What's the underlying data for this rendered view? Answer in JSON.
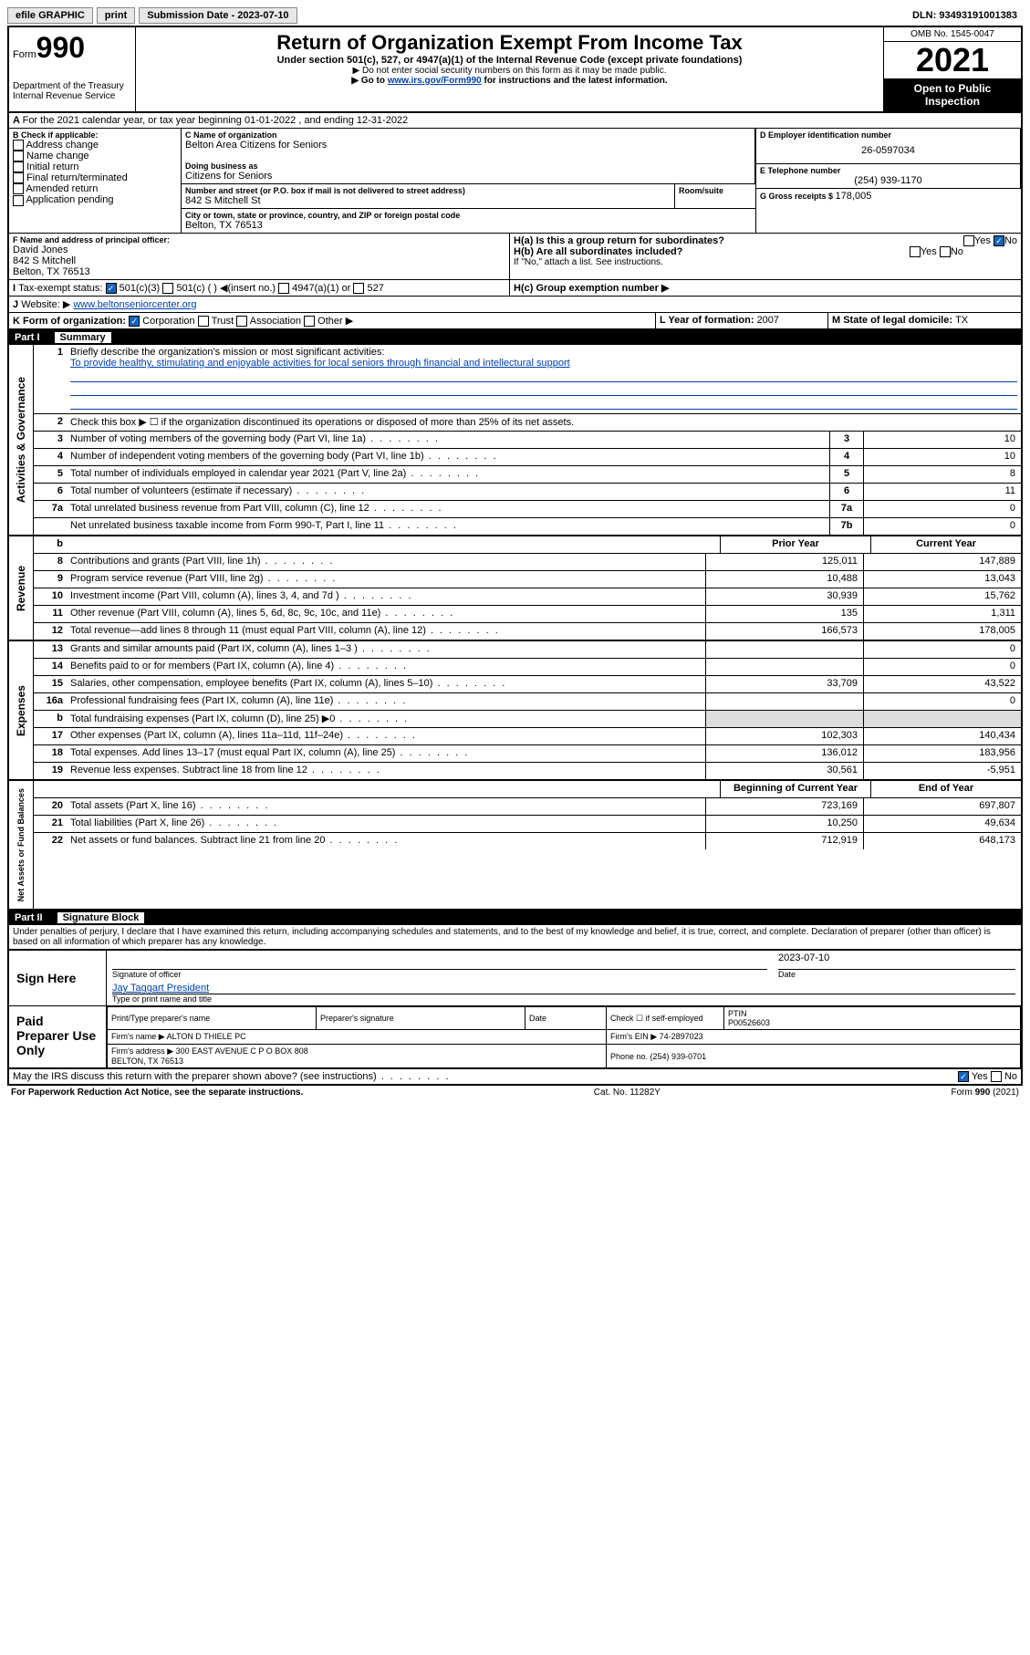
{
  "topbar": {
    "efile": "efile GRAPHIC",
    "print": "print",
    "submission_label": "Submission Date - ",
    "submission_date": "2023-07-10",
    "dln_label": "DLN: ",
    "dln": "93493191001383"
  },
  "header": {
    "form_prefix": "Form",
    "form_number": "990",
    "dept": "Department of the Treasury Internal Revenue Service",
    "title": "Return of Organization Exempt From Income Tax",
    "sub1": "Under section 501(c), 527, or 4947(a)(1) of the Internal Revenue Code (except private foundations)",
    "sub2": "▶ Do not enter social security numbers on this form as it may be made public.",
    "sub3_pre": "▶ Go to ",
    "sub3_link": "www.irs.gov/Form990",
    "sub3_post": " for instructions and the latest information.",
    "omb": "OMB No. 1545-0047",
    "year": "2021",
    "inspection": "Open to Public Inspection"
  },
  "period": {
    "line_a": "For the 2021 calendar year, or tax year beginning 01-01-2022  , and ending 12-31-2022"
  },
  "boxB": {
    "label": "Check if applicable:",
    "items": [
      "Address change",
      "Name change",
      "Initial return",
      "Final return/terminated",
      "Amended return",
      "Application pending"
    ]
  },
  "boxC": {
    "name_label": "C Name of organization",
    "name": "Belton Area Citizens for Seniors",
    "dba_label": "Doing business as",
    "dba": "Citizens for Seniors",
    "addr_label": "Number and street (or P.O. box if mail is not delivered to street address)",
    "room_label": "Room/suite",
    "addr": "842 S Mitchell St",
    "city_label": "City or town, state or province, country, and ZIP or foreign postal code",
    "city": "Belton, TX  76513"
  },
  "boxD": {
    "label": "D Employer identification number",
    "value": "26-0597034"
  },
  "boxE": {
    "label": "E Telephone number",
    "value": "(254) 939-1170"
  },
  "boxG": {
    "label": "G Gross receipts $ ",
    "value": "178,005"
  },
  "boxF": {
    "label": "F Name and address of principal officer:",
    "name": "David Jones",
    "addr1": "842 S Mitchell",
    "addr2": "Belton, TX  76513"
  },
  "boxH": {
    "ha": "H(a)  Is this a group return for subordinates?",
    "hb": "H(b)  Are all subordinates included?",
    "hb_note": "If \"No,\" attach a list. See instructions.",
    "hc": "H(c)  Group exemption number ▶",
    "yes": "Yes",
    "no": "No"
  },
  "boxI": {
    "label": "Tax-exempt status:",
    "opt1": "501(c)(3)",
    "opt2": "501(c) (  ) ◀(insert no.)",
    "opt3": "4947(a)(1) or",
    "opt4": "527"
  },
  "boxJ": {
    "label": "Website: ▶ ",
    "value": "www.beltonseniorcenter.org"
  },
  "boxK": {
    "label": "K Form of organization:",
    "opts": [
      "Corporation",
      "Trust",
      "Association",
      "Other ▶"
    ]
  },
  "boxL": {
    "label": "L Year of formation: ",
    "value": "2007"
  },
  "boxM": {
    "label": "M State of legal domicile: ",
    "value": "TX"
  },
  "parts": {
    "p1": "Part I",
    "p1_title": "Summary",
    "p2": "Part II",
    "p2_title": "Signature Block"
  },
  "summary": {
    "l1_label": "Briefly describe the organization's mission or most significant activities:",
    "l1_text": "To provide healthy, stimulating and enjoyable activities for local seniors through financial and intellectural support",
    "l2": "Check this box ▶ ☐  if the organization discontinued its operations or disposed of more than 25% of its net assets.",
    "labels": {
      "activities": "Activities & Governance",
      "revenue": "Revenue",
      "expenses": "Expenses",
      "netassets": "Net Assets or Fund Balances"
    },
    "lines": [
      {
        "num": "3",
        "desc": "Number of voting members of the governing body (Part VI, line 1a)",
        "box": "3",
        "val": "10"
      },
      {
        "num": "4",
        "desc": "Number of independent voting members of the governing body (Part VI, line 1b)",
        "box": "4",
        "val": "10"
      },
      {
        "num": "5",
        "desc": "Total number of individuals employed in calendar year 2021 (Part V, line 2a)",
        "box": "5",
        "val": "8"
      },
      {
        "num": "6",
        "desc": "Total number of volunteers (estimate if necessary)",
        "box": "6",
        "val": "11"
      },
      {
        "num": "7a",
        "desc": "Total unrelated business revenue from Part VIII, column (C), line 12",
        "box": "7a",
        "val": "0"
      },
      {
        "num": " ",
        "desc": "Net unrelated business taxable income from Form 990-T, Part I, line 11",
        "box": "7b",
        "val": "0"
      }
    ],
    "colheads": {
      "b": "b",
      "prior": "Prior Year",
      "current": "Current Year",
      "begin": "Beginning of Current Year",
      "end": "End of Year"
    },
    "revenue": [
      {
        "num": "8",
        "desc": "Contributions and grants (Part VIII, line 1h)",
        "prior": "125,011",
        "cur": "147,889"
      },
      {
        "num": "9",
        "desc": "Program service revenue (Part VIII, line 2g)",
        "prior": "10,488",
        "cur": "13,043"
      },
      {
        "num": "10",
        "desc": "Investment income (Part VIII, column (A), lines 3, 4, and 7d )",
        "prior": "30,939",
        "cur": "15,762"
      },
      {
        "num": "11",
        "desc": "Other revenue (Part VIII, column (A), lines 5, 6d, 8c, 9c, 10c, and 11e)",
        "prior": "135",
        "cur": "1,311"
      },
      {
        "num": "12",
        "desc": "Total revenue—add lines 8 through 11 (must equal Part VIII, column (A), line 12)",
        "prior": "166,573",
        "cur": "178,005"
      }
    ],
    "expenses": [
      {
        "num": "13",
        "desc": "Grants and similar amounts paid (Part IX, column (A), lines 1–3 )",
        "prior": "",
        "cur": "0"
      },
      {
        "num": "14",
        "desc": "Benefits paid to or for members (Part IX, column (A), line 4)",
        "prior": "",
        "cur": "0"
      },
      {
        "num": "15",
        "desc": "Salaries, other compensation, employee benefits (Part IX, column (A), lines 5–10)",
        "prior": "33,709",
        "cur": "43,522"
      },
      {
        "num": "16a",
        "desc": "Professional fundraising fees (Part IX, column (A), line 11e)",
        "prior": "",
        "cur": "0"
      },
      {
        "num": "b",
        "desc": "Total fundraising expenses (Part IX, column (D), line 25) ▶0",
        "prior": "SHADE",
        "cur": "SHADE"
      },
      {
        "num": "17",
        "desc": "Other expenses (Part IX, column (A), lines 11a–11d, 11f–24e)",
        "prior": "102,303",
        "cur": "140,434"
      },
      {
        "num": "18",
        "desc": "Total expenses. Add lines 13–17 (must equal Part IX, column (A), line 25)",
        "prior": "136,012",
        "cur": "183,956"
      },
      {
        "num": "19",
        "desc": "Revenue less expenses. Subtract line 18 from line 12",
        "prior": "30,561",
        "cur": "-5,951"
      }
    ],
    "netassets": [
      {
        "num": "20",
        "desc": "Total assets (Part X, line 16)",
        "prior": "723,169",
        "cur": "697,807"
      },
      {
        "num": "21",
        "desc": "Total liabilities (Part X, line 26)",
        "prior": "10,250",
        "cur": "49,634"
      },
      {
        "num": "22",
        "desc": "Net assets or fund balances. Subtract line 21 from line 20",
        "prior": "712,919",
        "cur": "648,173"
      }
    ]
  },
  "sig": {
    "penalties": "Under penalties of perjury, I declare that I have examined this return, including accompanying schedules and statements, and to the best of my knowledge and belief, it is true, correct, and complete. Declaration of preparer (other than officer) is based on all information of which preparer has any knowledge.",
    "sign_here": "Sign Here",
    "sig_officer_label": "Signature of officer",
    "date_label": "Date",
    "date": "2023-07-10",
    "name_title": "Jay Taggart President",
    "name_title_label": "Type or print name and title",
    "paid": "Paid Preparer Use Only",
    "prep_name_label": "Print/Type preparer's name",
    "prep_sig_label": "Preparer's signature",
    "check_self": "Check ☐ if self-employed",
    "ptin_label": "PTIN",
    "ptin": "P00526603",
    "firm_name_label": "Firm's name  ▶ ",
    "firm_name": "ALTON D THIELE PC",
    "firm_ein_label": "Firm's EIN ▶ ",
    "firm_ein": "74-2897023",
    "firm_addr_label": "Firm's address ▶ ",
    "firm_addr": "300 EAST AVENUE C P O BOX 808",
    "firm_city": "BELTON, TX  76513",
    "phone_label": "Phone no. ",
    "phone": "(254) 939-0701",
    "discuss": "May the IRS discuss this return with the preparer shown above? (see instructions)",
    "yes": "Yes",
    "no": "No"
  },
  "footer": {
    "left": "For Paperwork Reduction Act Notice, see the separate instructions.",
    "mid": "Cat. No. 11282Y",
    "right": "Form 990 (2021)"
  }
}
